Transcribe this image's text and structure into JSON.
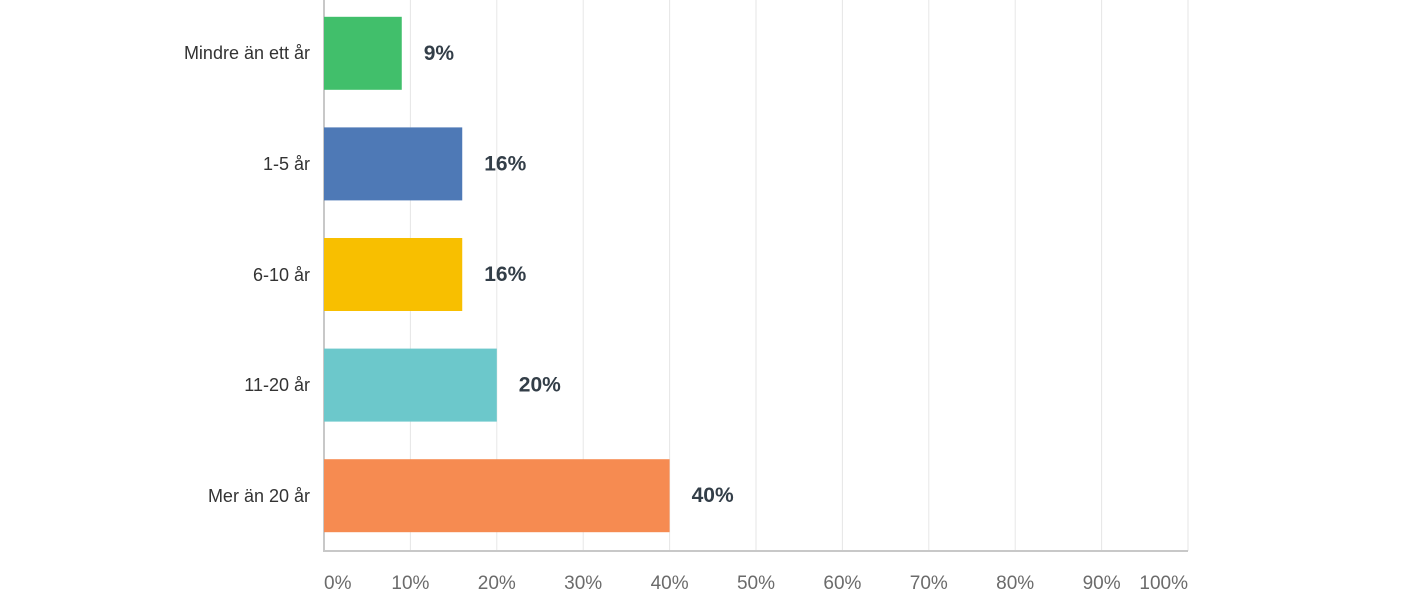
{
  "chart_data": {
    "type": "hbar",
    "categories": [
      "Mindre än ett år",
      "1-5 år",
      "6-10 år",
      "11-20 år",
      "Mer än 20 år"
    ],
    "values": [
      9,
      16,
      16,
      20,
      40
    ],
    "value_labels": [
      "9%",
      "16%",
      "16%",
      "20%",
      "40%"
    ],
    "colors": [
      "#41bf6b",
      "#4e79b6",
      "#f8bf00",
      "#6cc8cb",
      "#f68b51"
    ],
    "xlim": [
      0,
      100
    ],
    "xticks": [
      {
        "value": 0,
        "label": "0%"
      },
      {
        "value": 10,
        "label": "10%"
      },
      {
        "value": 20,
        "label": "20%"
      },
      {
        "value": 30,
        "label": "30%"
      },
      {
        "value": 40,
        "label": "40%"
      },
      {
        "value": 50,
        "label": "50%"
      },
      {
        "value": 60,
        "label": "60%"
      },
      {
        "value": 70,
        "label": "70%"
      },
      {
        "value": 80,
        "label": "80%"
      },
      {
        "value": 90,
        "label": "90%"
      },
      {
        "value": 100,
        "label": "100%"
      }
    ],
    "grid": true
  }
}
